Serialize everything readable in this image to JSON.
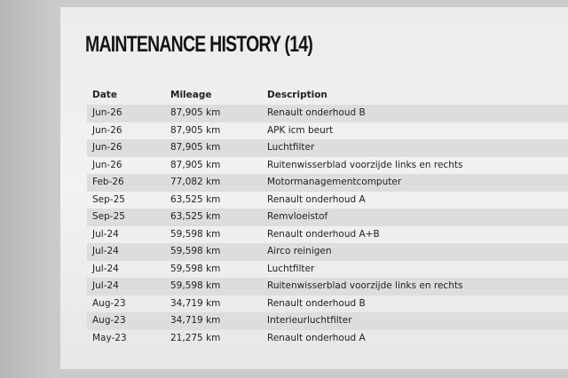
{
  "header": {
    "title": "MAINTENANCE HISTORY (14)"
  },
  "table": {
    "columns": [
      "Date",
      "Mileage",
      "Description"
    ],
    "rows": [
      [
        "Jun-26",
        "87,905 km",
        "Renault onderhoud B"
      ],
      [
        "Jun-26",
        "87,905 km",
        "APK icm beurt"
      ],
      [
        "Jun-26",
        "87,905 km",
        "Luchtfilter"
      ],
      [
        "Jun-26",
        "87,905 km",
        "Ruitenwisserblad voorzijde links en rechts"
      ],
      [
        "Feb-26",
        "77,082 km",
        "Motormanagementcomputer"
      ],
      [
        "Sep-25",
        "63,525 km",
        "Renault onderhoud A"
      ],
      [
        "Sep-25",
        "63,525 km",
        "Remvloeistof"
      ],
      [
        "Jul-24",
        "59,598 km",
        "Renault onderhoud A+B"
      ],
      [
        "Jul-24",
        "59,598 km",
        "Airco reinigen"
      ],
      [
        "Jul-24",
        "59,598 km",
        "Luchtfilter"
      ],
      [
        "Jul-24",
        "59,598 km",
        "Ruitenwisserblad voorzijde links en rechts"
      ],
      [
        "Aug-23",
        "34,719 km",
        "Renault onderhoud B"
      ],
      [
        "Aug-23",
        "34,719 km",
        "Interieurluchtfilter"
      ],
      [
        "May-23",
        "21,275 km",
        "Renault onderhoud A"
      ]
    ]
  }
}
